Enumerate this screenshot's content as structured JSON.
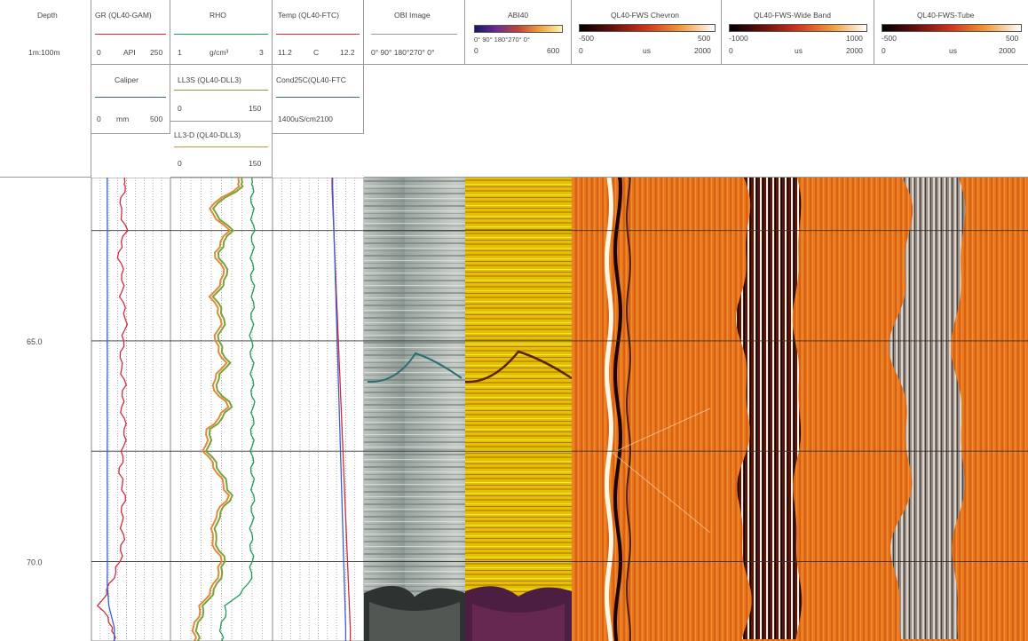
{
  "depth_track": {
    "title": "Depth",
    "scale": "1m:100m",
    "labels": [
      "65.0",
      "70.0"
    ]
  },
  "headers": {
    "gr": {
      "title": "GR (QL40-GAM)",
      "min": "0",
      "unit": "API",
      "max": "250",
      "color": "#d22b3c"
    },
    "caliper": {
      "title": "Caliper",
      "min": "0",
      "unit": "mm",
      "max": "500",
      "color": "#3a5fcd"
    },
    "rho": {
      "title": "RHO",
      "min": "1",
      "unit": "g/cm³",
      "max": "3",
      "color": "#1f9a5a"
    },
    "ll3s": {
      "title": "LL3S (QL40-DLL3)",
      "min": "0",
      "max": "150",
      "color": "#7aa33a"
    },
    "ll3d": {
      "title": "LL3-D (QL40-DLL3)",
      "min": "0",
      "max": "150",
      "color": "#e08a3a"
    },
    "temp": {
      "title": "Temp (QL40-FTC)",
      "min": "11.2",
      "unit": "C",
      "max": "12.2",
      "color": "#d22b3c"
    },
    "cond": {
      "title": "Cond25C(QL40-FTC",
      "range": "1400uS/cm2100",
      "color": "#3a5fcd"
    },
    "obi": {
      "title": "OBI Image",
      "ticks": "0°  90°  180°270°  0°"
    },
    "abi": {
      "title": "ABI40",
      "ticks": "0°  90°  180°270°  0°",
      "min": "0",
      "max": "600"
    },
    "chevron": {
      "title": "QL40-FWS Chevron",
      "amin": "-500",
      "amax": "500",
      "min": "0",
      "unit": "us",
      "max": "2000"
    },
    "wide": {
      "title": "QL40-FWS-Wide Band",
      "amin": "-1000",
      "amax": "1000",
      "min": "0",
      "unit": "us",
      "max": "2000"
    },
    "tube": {
      "title": "QL40-FWS-Tube",
      "amin": "-500",
      "amax": "500",
      "min": "0",
      "unit": "us",
      "max": "2000"
    }
  },
  "chart_data": {
    "type": "line",
    "depth_range_m": [
      61.3,
      71.8
    ],
    "depth": [
      61.5,
      62.0,
      62.5,
      63.0,
      63.5,
      64.0,
      64.5,
      65.0,
      65.5,
      66.0,
      66.5,
      67.0,
      67.5,
      68.0,
      68.5,
      69.0,
      69.5,
      70.0,
      70.5,
      71.0,
      71.5
    ],
    "series": [
      {
        "name": "GR (QL40-GAM)",
        "unit": "API",
        "range": [
          0,
          250
        ],
        "values": [
          105,
          90,
          110,
          85,
          100,
          95,
          110,
          100,
          92,
          105,
          95,
          108,
          100,
          90,
          105,
          95,
          100,
          90,
          60,
          25,
          70
        ]
      },
      {
        "name": "Caliper",
        "unit": "mm",
        "range": [
          0,
          500
        ],
        "values": [
          100,
          100,
          101,
          100,
          100,
          101,
          100,
          100,
          101,
          100,
          100,
          101,
          100,
          100,
          101,
          100,
          100,
          101,
          100,
          110,
          145
        ]
      },
      {
        "name": "RHO",
        "unit": "g/cm³",
        "range": [
          1,
          3
        ],
        "values": [
          2.6,
          2.6,
          2.62,
          2.6,
          2.6,
          2.62,
          2.6,
          2.58,
          2.6,
          2.6,
          2.62,
          2.6,
          2.6,
          2.6,
          2.62,
          2.6,
          2.58,
          2.6,
          2.55,
          2.1,
          2.0
        ]
      },
      {
        "name": "LL3S (QL40-DLL3)",
        "range": [
          0,
          150
        ],
        "values": [
          105,
          60,
          90,
          70,
          85,
          65,
          80,
          70,
          85,
          65,
          90,
          60,
          55,
          75,
          90,
          70,
          65,
          80,
          70,
          50,
          40
        ]
      },
      {
        "name": "LL3-D (QL40-DLL3)",
        "range": [
          0,
          150
        ],
        "values": [
          100,
          55,
          85,
          65,
          80,
          60,
          75,
          65,
          80,
          60,
          85,
          55,
          50,
          70,
          85,
          65,
          60,
          75,
          65,
          45,
          35
        ]
      },
      {
        "name": "Temp (QL40-FTC)",
        "unit": "C",
        "range": [
          11.2,
          12.2
        ],
        "values": [
          11.85,
          11.86,
          11.87,
          11.88,
          11.89,
          11.9,
          11.91,
          11.92,
          11.93,
          11.94,
          11.95,
          11.96,
          11.97,
          11.98,
          11.99,
          12.0,
          12.01,
          12.02,
          12.03,
          12.04,
          12.05
        ]
      },
      {
        "name": "Cond25C(QL40-FTC",
        "range": [
          1400,
          2100
        ],
        "values": [
          1860,
          1865,
          1870,
          1875,
          1880,
          1885,
          1890,
          1895,
          1900,
          1905,
          1910,
          1915,
          1920,
          1925,
          1930,
          1935,
          1940,
          1945,
          1950,
          1955,
          1960
        ]
      }
    ],
    "depth_labels": [
      "65.0",
      "70.0"
    ]
  }
}
